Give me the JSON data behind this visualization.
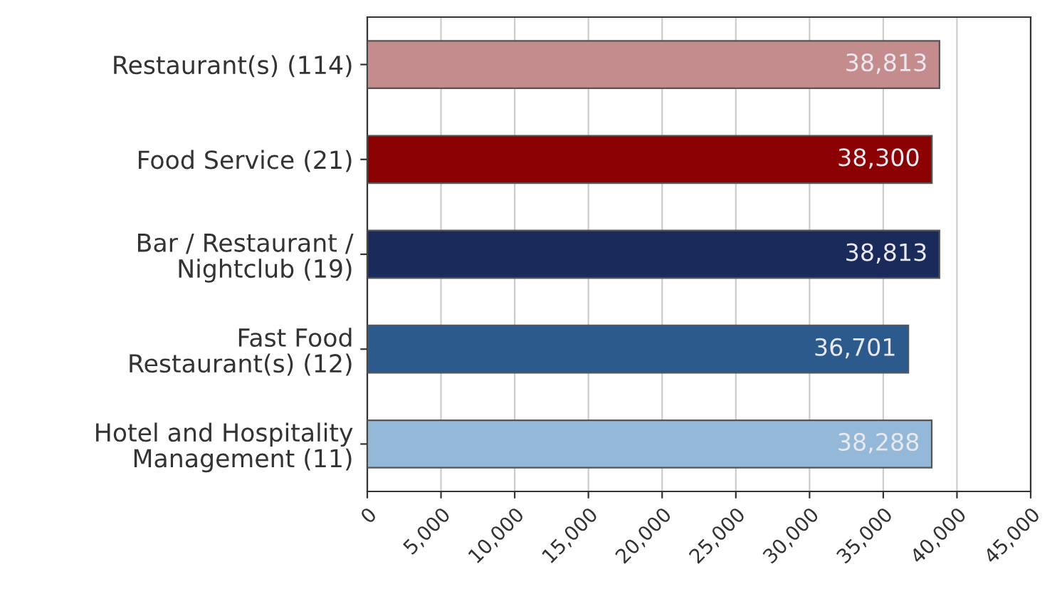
{
  "chart_data": {
    "type": "bar",
    "orientation": "horizontal",
    "categories": [
      "Restaurant(s) (114)",
      "Food Service (21)",
      "Bar / Restaurant /\nNightclub (19)",
      "Fast Food\nRestaurant(s) (12)",
      "Hotel and Hospitality\nManagement (11)"
    ],
    "values": [
      38813,
      38300,
      38813,
      36701,
      38288
    ],
    "colors": [
      "#c48c8c",
      "#8b0000",
      "#1a2a5a",
      "#2c5a8c",
      "#94b8d8"
    ],
    "value_labels": [
      "38,813",
      "38,300",
      "38,813",
      "36,701",
      "38,288"
    ],
    "xlim": [
      0,
      45000
    ],
    "xticks": [
      0,
      {
        "value": 5000,
        "label": "5,000"
      },
      {
        "value": 10000,
        "label": "10,000"
      },
      {
        "value": 15000,
        "label": "15,000"
      },
      {
        "value": 20000,
        "label": "20,000"
      },
      {
        "value": 25000,
        "label": "25,000"
      },
      {
        "value": 30000,
        "label": "30,000"
      },
      {
        "value": 35000,
        "label": "35,000"
      },
      {
        "value": 40000,
        "label": "40,000"
      },
      {
        "value": 45000,
        "label": "45,000"
      }
    ],
    "grid": "x"
  }
}
